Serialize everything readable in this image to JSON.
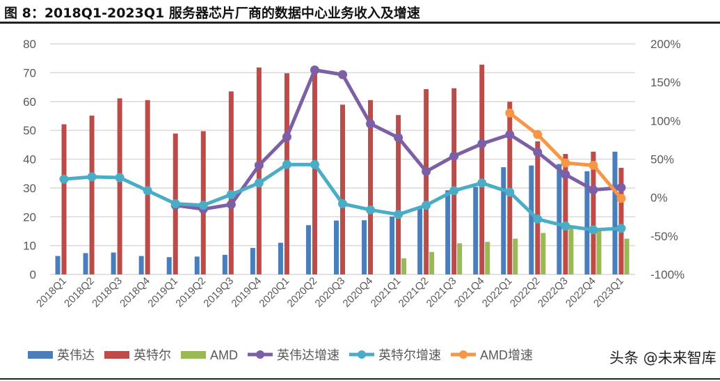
{
  "title": "图 8：2018Q1-2023Q1 服务器芯片厂商的数据中心业务收入及增速",
  "watermark": "头条 @未来智库",
  "chart_data": {
    "type": "bar",
    "title": "",
    "categories": [
      "2018Q1",
      "2018Q2",
      "2018Q3",
      "2018Q4",
      "2019Q1",
      "2019Q2",
      "2019Q3",
      "2019Q4",
      "2020Q1",
      "2020Q2",
      "2020Q3",
      "2020Q4",
      "2021Q1",
      "2021Q2",
      "2021Q3",
      "2021Q4",
      "2022Q1",
      "2022Q2",
      "2022Q3",
      "2022Q4",
      "2023Q1"
    ],
    "y_left": {
      "range": [
        0,
        80
      ],
      "ticks": [
        "0",
        "10",
        "20",
        "30",
        "40",
        "50",
        "60",
        "70",
        "80"
      ]
    },
    "y_right": {
      "range": [
        -100,
        200
      ],
      "ticks": [
        "-100%",
        "-50%",
        "0%",
        "50%",
        "100%",
        "150%",
        "200%"
      ]
    },
    "grid": true,
    "legend_position": "bottom",
    "bar_series": [
      {
        "name": "英伟达",
        "color": "#4a7ebb",
        "values": [
          6.4,
          7.4,
          7.6,
          6.4,
          6.0,
          6.2,
          6.8,
          9.2,
          11.0,
          17.1,
          18.7,
          18.8,
          20.1,
          22.9,
          29.2,
          30.4,
          37.2,
          37.8,
          38.3,
          35.8,
          42.6
        ]
      },
      {
        "name": "英特尔",
        "color": "#be4b48",
        "values": [
          52.1,
          55.1,
          61.1,
          60.5,
          48.9,
          49.7,
          63.5,
          71.8,
          69.8,
          71.0,
          58.9,
          60.5,
          55.3,
          64.3,
          64.6,
          72.8,
          59.9,
          46.2,
          41.8,
          42.6,
          37.0
        ]
      },
      {
        "name": "AMD",
        "color": "#98b954",
        "values": [
          null,
          null,
          null,
          null,
          null,
          null,
          null,
          null,
          null,
          null,
          null,
          null,
          5.6,
          7.8,
          10.8,
          11.3,
          12.4,
          14.4,
          16.1,
          15.3,
          12.4
        ]
      }
    ],
    "line_series": [
      {
        "name": "英伟达增速",
        "color": "#7d5fa5",
        "axis": "right",
        "values": [
          null,
          null,
          null,
          null,
          -10,
          -15,
          -9,
          42,
          79,
          166,
          160,
          96,
          78,
          34,
          54,
          70,
          82,
          59,
          30,
          10,
          13
        ]
      },
      {
        "name": "英特尔增速",
        "color": "#4bacc6",
        "axis": "right",
        "values": [
          24,
          27,
          26,
          9,
          -8,
          -10,
          4,
          19,
          43,
          43,
          -8,
          -16,
          -22,
          -10,
          9,
          19,
          7,
          -28,
          -37,
          -42,
          -40
        ]
      },
      {
        "name": "AMD增速",
        "color": "#f79646",
        "axis": "right",
        "values": [
          null,
          null,
          null,
          null,
          null,
          null,
          null,
          null,
          null,
          null,
          null,
          null,
          null,
          null,
          null,
          null,
          110,
          82,
          45,
          42,
          -1
        ]
      }
    ]
  }
}
